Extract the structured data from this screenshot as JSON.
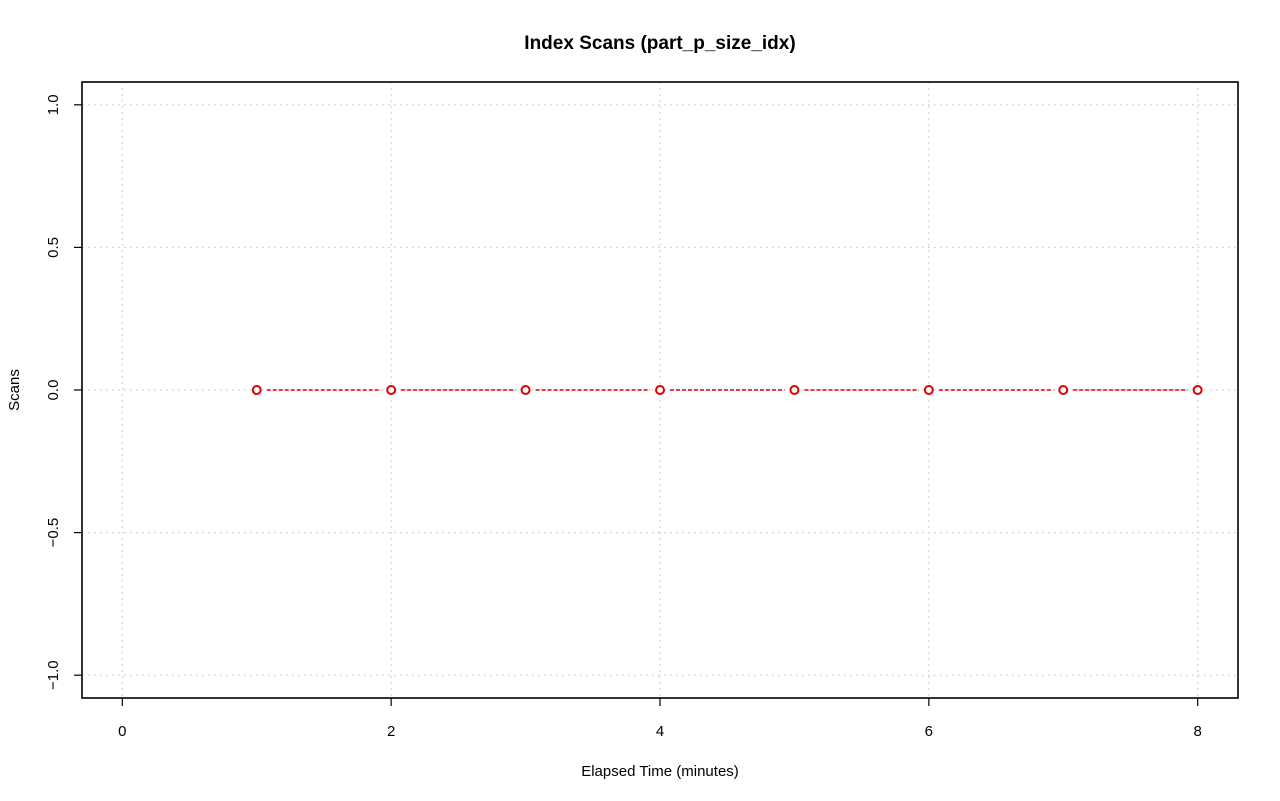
{
  "chart_data": {
    "type": "line",
    "title": "Index Scans (part_p_size_idx)",
    "xlabel": "Elapsed Time (minutes)",
    "ylabel": "Scans",
    "xlim": [
      -0.3,
      8.3
    ],
    "ylim": [
      -1.08,
      1.08
    ],
    "x_ticks": [
      0,
      2,
      4,
      6,
      8
    ],
    "x_tick_labels": [
      "0",
      "2",
      "4",
      "6",
      "8"
    ],
    "y_ticks": [
      -1.0,
      -0.5,
      0.0,
      0.5,
      1.0
    ],
    "y_tick_labels": [
      "−1.0",
      "−0.5",
      "0.0",
      "0.5",
      "1.0"
    ],
    "grid": true,
    "series": [
      {
        "color": "#e00000",
        "x": [
          1,
          2,
          3,
          4,
          5,
          6,
          7,
          8
        ],
        "y": [
          0,
          0,
          0,
          0,
          0,
          0,
          0,
          0
        ]
      }
    ]
  }
}
